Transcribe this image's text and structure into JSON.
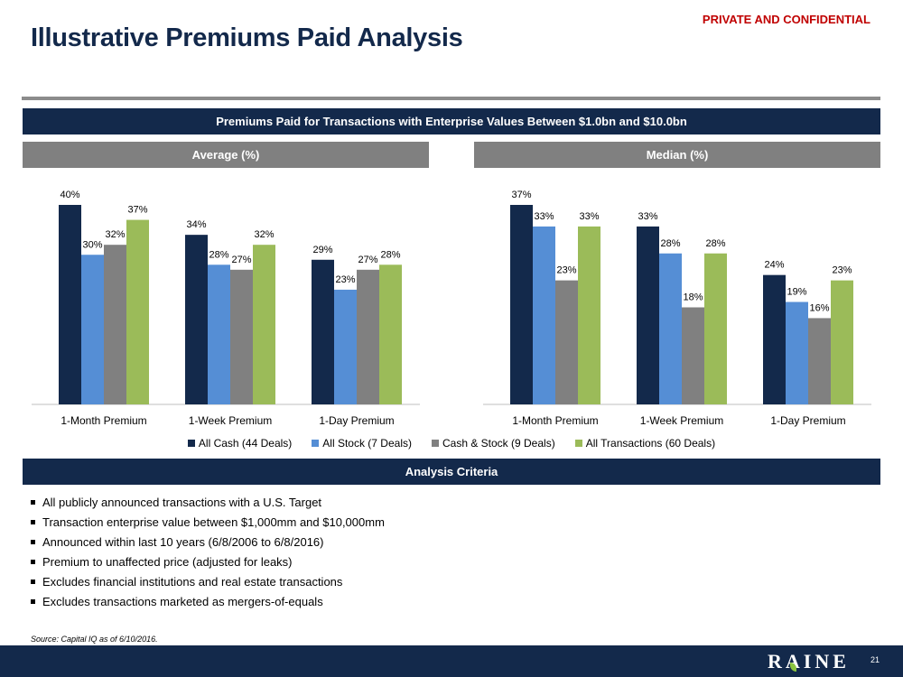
{
  "header": {
    "confidential": "PRIVATE AND CONFIDENTIAL",
    "title": "Illustrative Premiums Paid Analysis"
  },
  "main_banner": "Premiums Paid for Transactions with Enterprise Values Between $1.0bn and $10.0bn",
  "panels": {
    "average_title": "Average (%)",
    "median_title": "Median (%)"
  },
  "colors": {
    "navy": "#13294b",
    "all_cash": "#13294b",
    "all_stock": "#558ed5",
    "cash_stock": "#808080",
    "all_transactions": "#9bbb59"
  },
  "legend": [
    {
      "label": "All Cash (44 Deals)",
      "color": "#13294b"
    },
    {
      "label": "All Stock (7 Deals)",
      "color": "#558ed5"
    },
    {
      "label": "Cash & Stock (9 Deals)",
      "color": "#808080"
    },
    {
      "label": "All Transactions (60 Deals)",
      "color": "#9bbb59"
    }
  ],
  "chart_data": [
    {
      "type": "bar",
      "title": "Average (%)",
      "categories": [
        "1-Month Premium",
        "1-Week Premium",
        "1-Day Premium"
      ],
      "series": [
        {
          "name": "All Cash (44 Deals)",
          "values": [
            40,
            34,
            29
          ]
        },
        {
          "name": "All Stock (7 Deals)",
          "values": [
            30,
            28,
            23
          ]
        },
        {
          "name": "Cash & Stock (9 Deals)",
          "values": [
            32,
            27,
            27
          ]
        },
        {
          "name": "All Transactions (60 Deals)",
          "values": [
            37,
            32,
            28
          ]
        }
      ],
      "value_suffix": "%",
      "ylim": [
        0,
        40
      ],
      "legend_position": "bottom"
    },
    {
      "type": "bar",
      "title": "Median (%)",
      "categories": [
        "1-Month Premium",
        "1-Week Premium",
        "1-Day Premium"
      ],
      "series": [
        {
          "name": "All Cash (44 Deals)",
          "values": [
            37,
            33,
            24
          ]
        },
        {
          "name": "All Stock (7 Deals)",
          "values": [
            33,
            28,
            19
          ]
        },
        {
          "name": "Cash & Stock (9 Deals)",
          "values": [
            23,
            18,
            16
          ]
        },
        {
          "name": "All Transactions (60 Deals)",
          "values": [
            33,
            28,
            23
          ]
        }
      ],
      "value_suffix": "%",
      "ylim": [
        0,
        37
      ],
      "legend_position": "bottom"
    }
  ],
  "criteria": {
    "title": "Analysis Criteria",
    "items": [
      "All publicly announced transactions with a U.S. Target",
      "Transaction enterprise value between $1,000mm and $10,000mm",
      "Announced within last 10 years (6/8/2006 to 6/8/2016)",
      "Premium to unaffected price (adjusted for leaks)",
      "Excludes financial institutions and real estate transactions",
      "Excludes transactions marketed as mergers-of-equals"
    ]
  },
  "source": "Source: Capital IQ as of 6/10/2016.",
  "footer": {
    "logo": "RAINE",
    "page_number": "21"
  }
}
